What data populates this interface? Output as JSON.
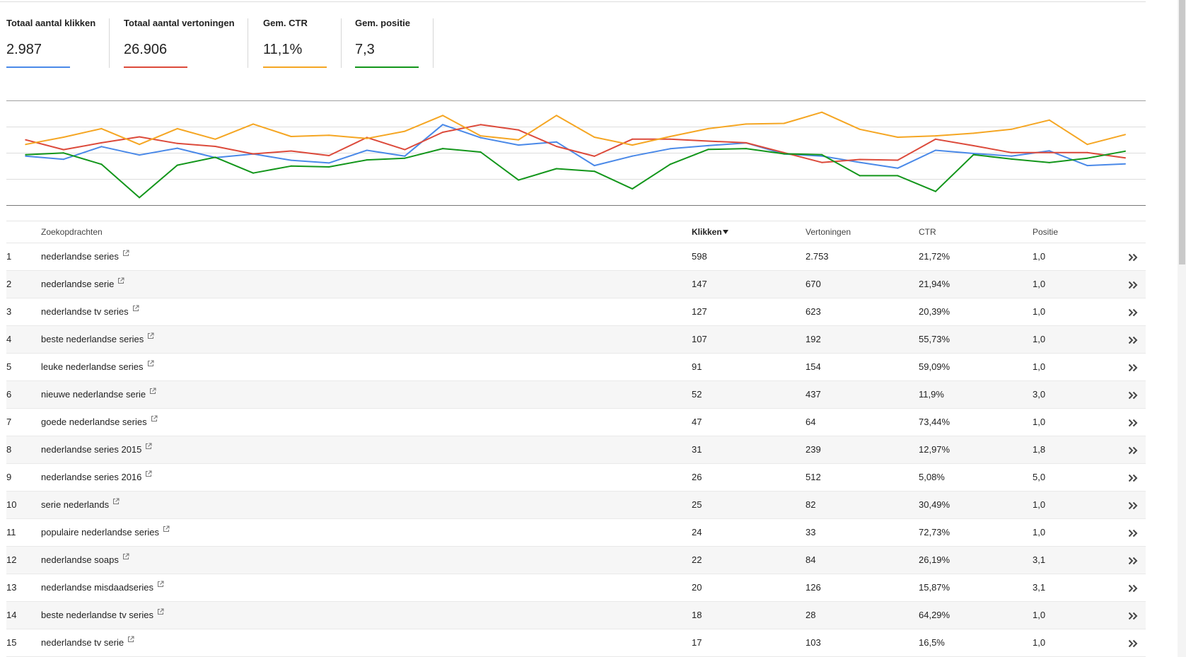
{
  "metrics": [
    {
      "label": "Totaal aantal klikken",
      "value": "2.987",
      "color": "#4a89e8"
    },
    {
      "label": "Totaal aantal vertoningen",
      "value": "26.906",
      "color": "#dc4a3b"
    },
    {
      "label": "Gem. CTR",
      "value": "11,1%",
      "color": "#f5a623"
    },
    {
      "label": "Gem. positie",
      "value": "7,3",
      "color": "#13961b"
    }
  ],
  "chart_data": {
    "type": "line",
    "grid": true,
    "series": [
      {
        "color": "#4a89e8",
        "ylim": [
          0,
          200
        ],
        "values": [
          94,
          88,
          112,
          96,
          109,
          91,
          98,
          86,
          81,
          105,
          94,
          154,
          129,
          115,
          121,
          76,
          94,
          108,
          114,
          119,
          98,
          94,
          82,
          71,
          105,
          99,
          94,
          104,
          76,
          79
        ]
      },
      {
        "color": "#dc4a3b",
        "ylim": [
          0,
          1600
        ],
        "values": [
          1000,
          850,
          955,
          1045,
          945,
          900,
          785,
          830,
          760,
          1035,
          850,
          1115,
          1230,
          1150,
          900,
          750,
          1010,
          1010,
          980,
          955,
          805,
          655,
          700,
          690,
          1010,
          910,
          805,
          805,
          805,
          725
        ]
      },
      {
        "color": "#f5a623",
        "ylim": [
          0,
          16
        ],
        "values": [
          9.3,
          10.4,
          11.7,
          9.3,
          11.7,
          10.1,
          12.4,
          10.5,
          10.7,
          10.2,
          11.3,
          13.7,
          10.6,
          10.0,
          13.7,
          10.4,
          9.2,
          10.5,
          11.7,
          12.4,
          12.5,
          14.2,
          11.6,
          10.4,
          10.6,
          11.0,
          11.6,
          13.0,
          9.3,
          10.8
        ]
      },
      {
        "color": "#13961b",
        "ylim": [
          0,
          12
        ],
        "inverted": true,
        "values": [
          6.2,
          6.0,
          7.3,
          11.1,
          7.4,
          6.5,
          8.3,
          7.5,
          7.6,
          6.8,
          6.6,
          5.5,
          5.9,
          9.1,
          7.8,
          8.1,
          10.1,
          7.3,
          5.6,
          5.5,
          6.1,
          6.2,
          8.6,
          8.6,
          10.4,
          6.2,
          6.7,
          7.1,
          6.6,
          5.8
        ]
      }
    ]
  },
  "table": {
    "headers": {
      "query": "Zoekopdrachten",
      "clicks": "Klikken",
      "impressions": "Vertoningen",
      "ctr": "CTR",
      "position": "Positie"
    },
    "rows": [
      {
        "rank": "1",
        "query": "nederlandse series",
        "clicks": "598",
        "impressions": "2.753",
        "ctr": "21,72%",
        "position": "1,0"
      },
      {
        "rank": "2",
        "query": "nederlandse serie",
        "clicks": "147",
        "impressions": "670",
        "ctr": "21,94%",
        "position": "1,0"
      },
      {
        "rank": "3",
        "query": "nederlandse tv series",
        "clicks": "127",
        "impressions": "623",
        "ctr": "20,39%",
        "position": "1,0"
      },
      {
        "rank": "4",
        "query": "beste nederlandse series",
        "clicks": "107",
        "impressions": "192",
        "ctr": "55,73%",
        "position": "1,0"
      },
      {
        "rank": "5",
        "query": "leuke nederlandse series",
        "clicks": "91",
        "impressions": "154",
        "ctr": "59,09%",
        "position": "1,0"
      },
      {
        "rank": "6",
        "query": "nieuwe nederlandse serie",
        "clicks": "52",
        "impressions": "437",
        "ctr": "11,9%",
        "position": "3,0"
      },
      {
        "rank": "7",
        "query": "goede nederlandse series",
        "clicks": "47",
        "impressions": "64",
        "ctr": "73,44%",
        "position": "1,0"
      },
      {
        "rank": "8",
        "query": "nederlandse series 2015",
        "clicks": "31",
        "impressions": "239",
        "ctr": "12,97%",
        "position": "1,8"
      },
      {
        "rank": "9",
        "query": "nederlandse series 2016",
        "clicks": "26",
        "impressions": "512",
        "ctr": "5,08%",
        "position": "5,0"
      },
      {
        "rank": "10",
        "query": "serie nederlands",
        "clicks": "25",
        "impressions": "82",
        "ctr": "30,49%",
        "position": "1,0"
      },
      {
        "rank": "11",
        "query": "populaire nederlandse series",
        "clicks": "24",
        "impressions": "33",
        "ctr": "72,73%",
        "position": "1,0"
      },
      {
        "rank": "12",
        "query": "nederlandse soaps",
        "clicks": "22",
        "impressions": "84",
        "ctr": "26,19%",
        "position": "3,1"
      },
      {
        "rank": "13",
        "query": "nederlandse misdaadseries",
        "clicks": "20",
        "impressions": "126",
        "ctr": "15,87%",
        "position": "3,1"
      },
      {
        "rank": "14",
        "query": "beste nederlandse tv series",
        "clicks": "18",
        "impressions": "28",
        "ctr": "64,29%",
        "position": "1,0"
      },
      {
        "rank": "15",
        "query": "nederlandse tv serie",
        "clicks": "17",
        "impressions": "103",
        "ctr": "16,5%",
        "position": "1,0"
      }
    ]
  },
  "icons": {
    "sort": "triangle-down-icon",
    "external_link": "external-link-icon",
    "row_action": "double-chevron-right-icon"
  }
}
